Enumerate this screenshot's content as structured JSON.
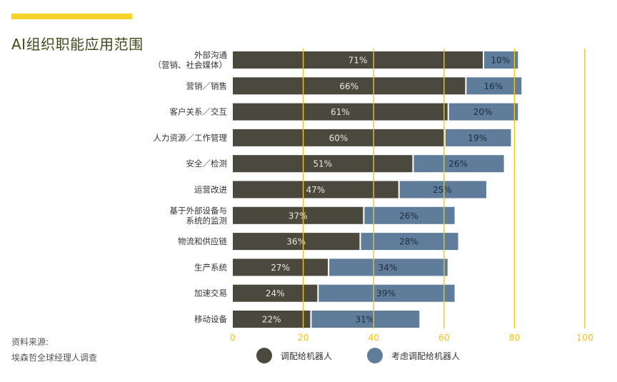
{
  "title": "AI组织职能应用范围",
  "source": {
    "line1": "资料来源:",
    "line2": "埃森哲全球经理人调查"
  },
  "colors": {
    "deployed": "#4b493e",
    "considering": "#5f7d9a",
    "grid": "#f2c318",
    "axis_text": "#f2c318",
    "accent": "#f6d22a"
  },
  "chart_data": {
    "type": "bar",
    "orientation": "horizontal",
    "stacked": true,
    "categories": [
      [
        "外部沟通",
        "（营销、社会媒体）"
      ],
      [
        "营销／销售"
      ],
      [
        "客户关系／交互"
      ],
      [
        "人力资源／工作管理"
      ],
      [
        "安全／检测"
      ],
      [
        "运营改进"
      ],
      [
        "基于外部设备与",
        "系统的监测"
      ],
      [
        "物流和供应链"
      ],
      [
        "生产系统"
      ],
      [
        "加速交易"
      ],
      [
        "移动设备"
      ]
    ],
    "series": [
      {
        "name": "调配给机器人",
        "values": [
          71,
          66,
          61,
          60,
          51,
          47,
          37,
          36,
          27,
          24,
          22
        ]
      },
      {
        "name": "考虑调配给机器人",
        "values": [
          10,
          16,
          20,
          19,
          26,
          25,
          26,
          28,
          34,
          39,
          31
        ]
      }
    ],
    "value_suffix": "%",
    "xlim": [
      0,
      100
    ],
    "xticks": [
      0,
      20,
      40,
      60,
      80,
      100
    ],
    "grid": true,
    "legend_position": "bottom"
  }
}
